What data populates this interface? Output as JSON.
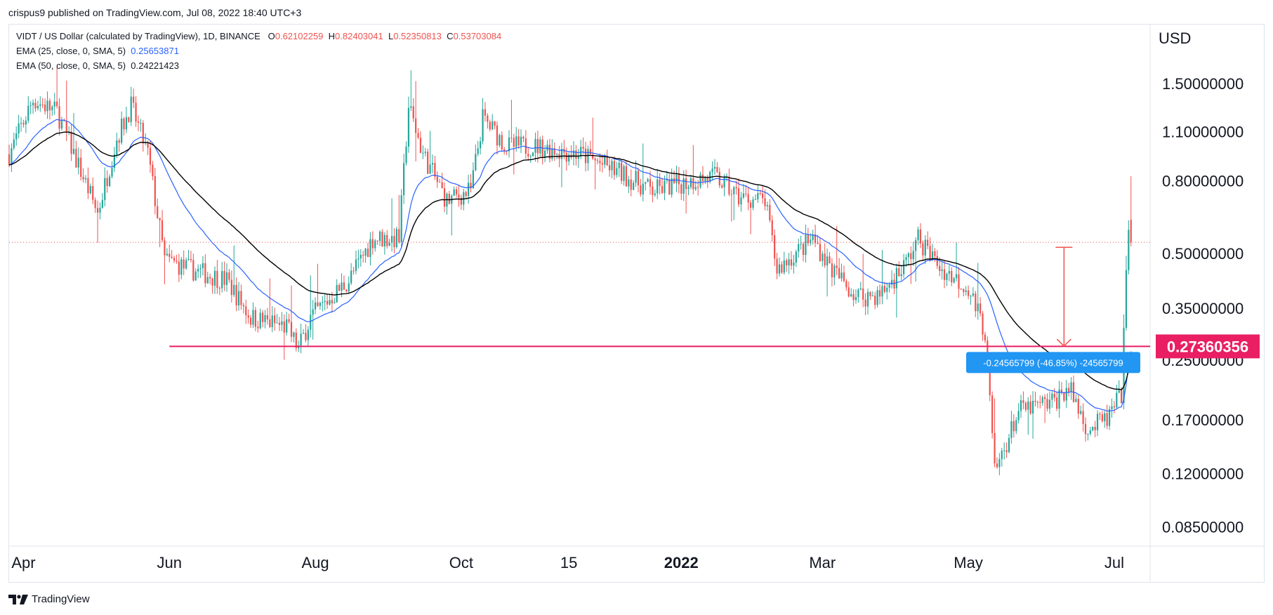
{
  "header": {
    "publisher": "crispus9 published on TradingView.com, Jul 08, 2022 18:40 UTC+3"
  },
  "legend": {
    "symbol": "VIDT / US Dollar (calculated by TradingView), 1D, BINANCE",
    "o_label": "O",
    "o_value": "0.62102259",
    "h_label": "H",
    "h_value": "0.82403041",
    "l_label": "L",
    "l_value": "0.52350813",
    "c_label": "C",
    "c_value": "0.53703084",
    "ema25_label": "EMA (25, close, 0, SMA, 5)",
    "ema25_value": "0.25653871",
    "ema50_label": "EMA (50, close, 0, SMA, 5)",
    "ema50_value": "0.24221423"
  },
  "footer": {
    "brand": "TradingView"
  },
  "colors": {
    "up": "#26a69a",
    "down": "#ef5350",
    "ema25": "#2962ff",
    "ema50": "#000000",
    "support": "#e91e63",
    "measure_arrow": "#ef5350",
    "measure_box": "#2196f3"
  },
  "chart_data": {
    "type": "candlestick",
    "currency": "USD",
    "y_scale": "log",
    "ylim": [
      0.075,
      2.2
    ],
    "y_ticks": [
      {
        "value": 1.5,
        "label": "1.50000000"
      },
      {
        "value": 1.1,
        "label": "1.10000000"
      },
      {
        "value": 0.8,
        "label": "0.80000000"
      },
      {
        "value": 0.5,
        "label": "0.50000000"
      },
      {
        "value": 0.35,
        "label": "0.35000000"
      },
      {
        "value": 0.25,
        "label": "0.25000000"
      },
      {
        "value": 0.17,
        "label": "0.17000000"
      },
      {
        "value": 0.12,
        "label": "0.12000000"
      },
      {
        "value": 0.085,
        "label": "0.08500000"
      }
    ],
    "x_range": [
      "2021-03-26",
      "2022-07-16"
    ],
    "x_ticks": [
      {
        "date": "2021-04-01",
        "label": "Apr",
        "bold": false
      },
      {
        "date": "2021-06-01",
        "label": "Jun",
        "bold": false
      },
      {
        "date": "2021-08-01",
        "label": "Aug",
        "bold": false
      },
      {
        "date": "2021-10-01",
        "label": "Oct",
        "bold": false
      },
      {
        "date": "2021-11-15",
        "label": "15",
        "bold": false
      },
      {
        "date": "2022-01-01",
        "label": "2022",
        "bold": true
      },
      {
        "date": "2022-03-01",
        "label": "Mar",
        "bold": false
      },
      {
        "date": "2022-05-01",
        "label": "May",
        "bold": false
      },
      {
        "date": "2022-07-01",
        "label": "Jul",
        "bold": false
      }
    ],
    "price_path": [
      [
        "2021-03-26",
        0.95
      ],
      [
        "2021-04-05",
        1.35
      ],
      [
        "2021-04-15",
        1.25
      ],
      [
        "2021-04-25",
        0.85
      ],
      [
        "2021-05-02",
        0.65
      ],
      [
        "2021-05-10",
        1.05
      ],
      [
        "2021-05-16",
        1.3
      ],
      [
        "2021-05-23",
        0.95
      ],
      [
        "2021-05-30",
        0.48
      ],
      [
        "2021-06-10",
        0.45
      ],
      [
        "2021-06-25",
        0.42
      ],
      [
        "2021-07-05",
        0.33
      ],
      [
        "2021-07-20",
        0.31
      ],
      [
        "2021-07-25",
        0.27
      ],
      [
        "2021-07-30",
        0.33
      ],
      [
        "2021-08-15",
        0.42
      ],
      [
        "2021-08-25",
        0.55
      ],
      [
        "2021-09-05",
        0.55
      ],
      [
        "2021-09-09",
        1.3
      ],
      [
        "2021-09-15",
        0.95
      ],
      [
        "2021-09-25",
        0.7
      ],
      [
        "2021-10-05",
        0.75
      ],
      [
        "2021-10-10",
        1.2
      ],
      [
        "2021-10-20",
        1.0
      ],
      [
        "2021-11-01",
        1.0
      ],
      [
        "2021-11-20",
        0.95
      ],
      [
        "2021-12-05",
        0.85
      ],
      [
        "2021-12-20",
        0.75
      ],
      [
        "2022-01-05",
        0.8
      ],
      [
        "2022-01-15",
        0.82
      ],
      [
        "2022-01-25",
        0.72
      ],
      [
        "2022-02-05",
        0.7
      ],
      [
        "2022-02-10",
        0.45
      ],
      [
        "2022-02-25",
        0.55
      ],
      [
        "2022-03-05",
        0.45
      ],
      [
        "2022-03-15",
        0.38
      ],
      [
        "2022-03-25",
        0.38
      ],
      [
        "2022-04-05",
        0.47
      ],
      [
        "2022-04-10",
        0.55
      ],
      [
        "2022-04-20",
        0.45
      ],
      [
        "2022-05-01",
        0.4
      ],
      [
        "2022-05-08",
        0.3
      ],
      [
        "2022-05-12",
        0.12
      ],
      [
        "2022-05-22",
        0.18
      ],
      [
        "2022-06-05",
        0.19
      ],
      [
        "2022-06-12",
        0.21
      ],
      [
        "2022-06-20",
        0.16
      ],
      [
        "2022-06-28",
        0.17
      ],
      [
        "2022-07-04",
        0.2
      ],
      [
        "2022-07-07",
        0.62
      ],
      [
        "2022-07-08",
        0.54
      ]
    ],
    "last_bar": {
      "open": 0.62102259,
      "high": 0.82403041,
      "low": 0.52350813,
      "close": 0.53703084
    },
    "ema25_last": 0.25653871,
    "ema50_last": 0.24221423,
    "support_level": {
      "value": 0.27360356,
      "label": "0.27360356",
      "from": "2021-06-01"
    },
    "measure": {
      "from_date": "2022-06-10",
      "from_price": 0.52,
      "to_price": 0.274,
      "label": "-0.24565799 (-46.85%) -24565799"
    }
  }
}
